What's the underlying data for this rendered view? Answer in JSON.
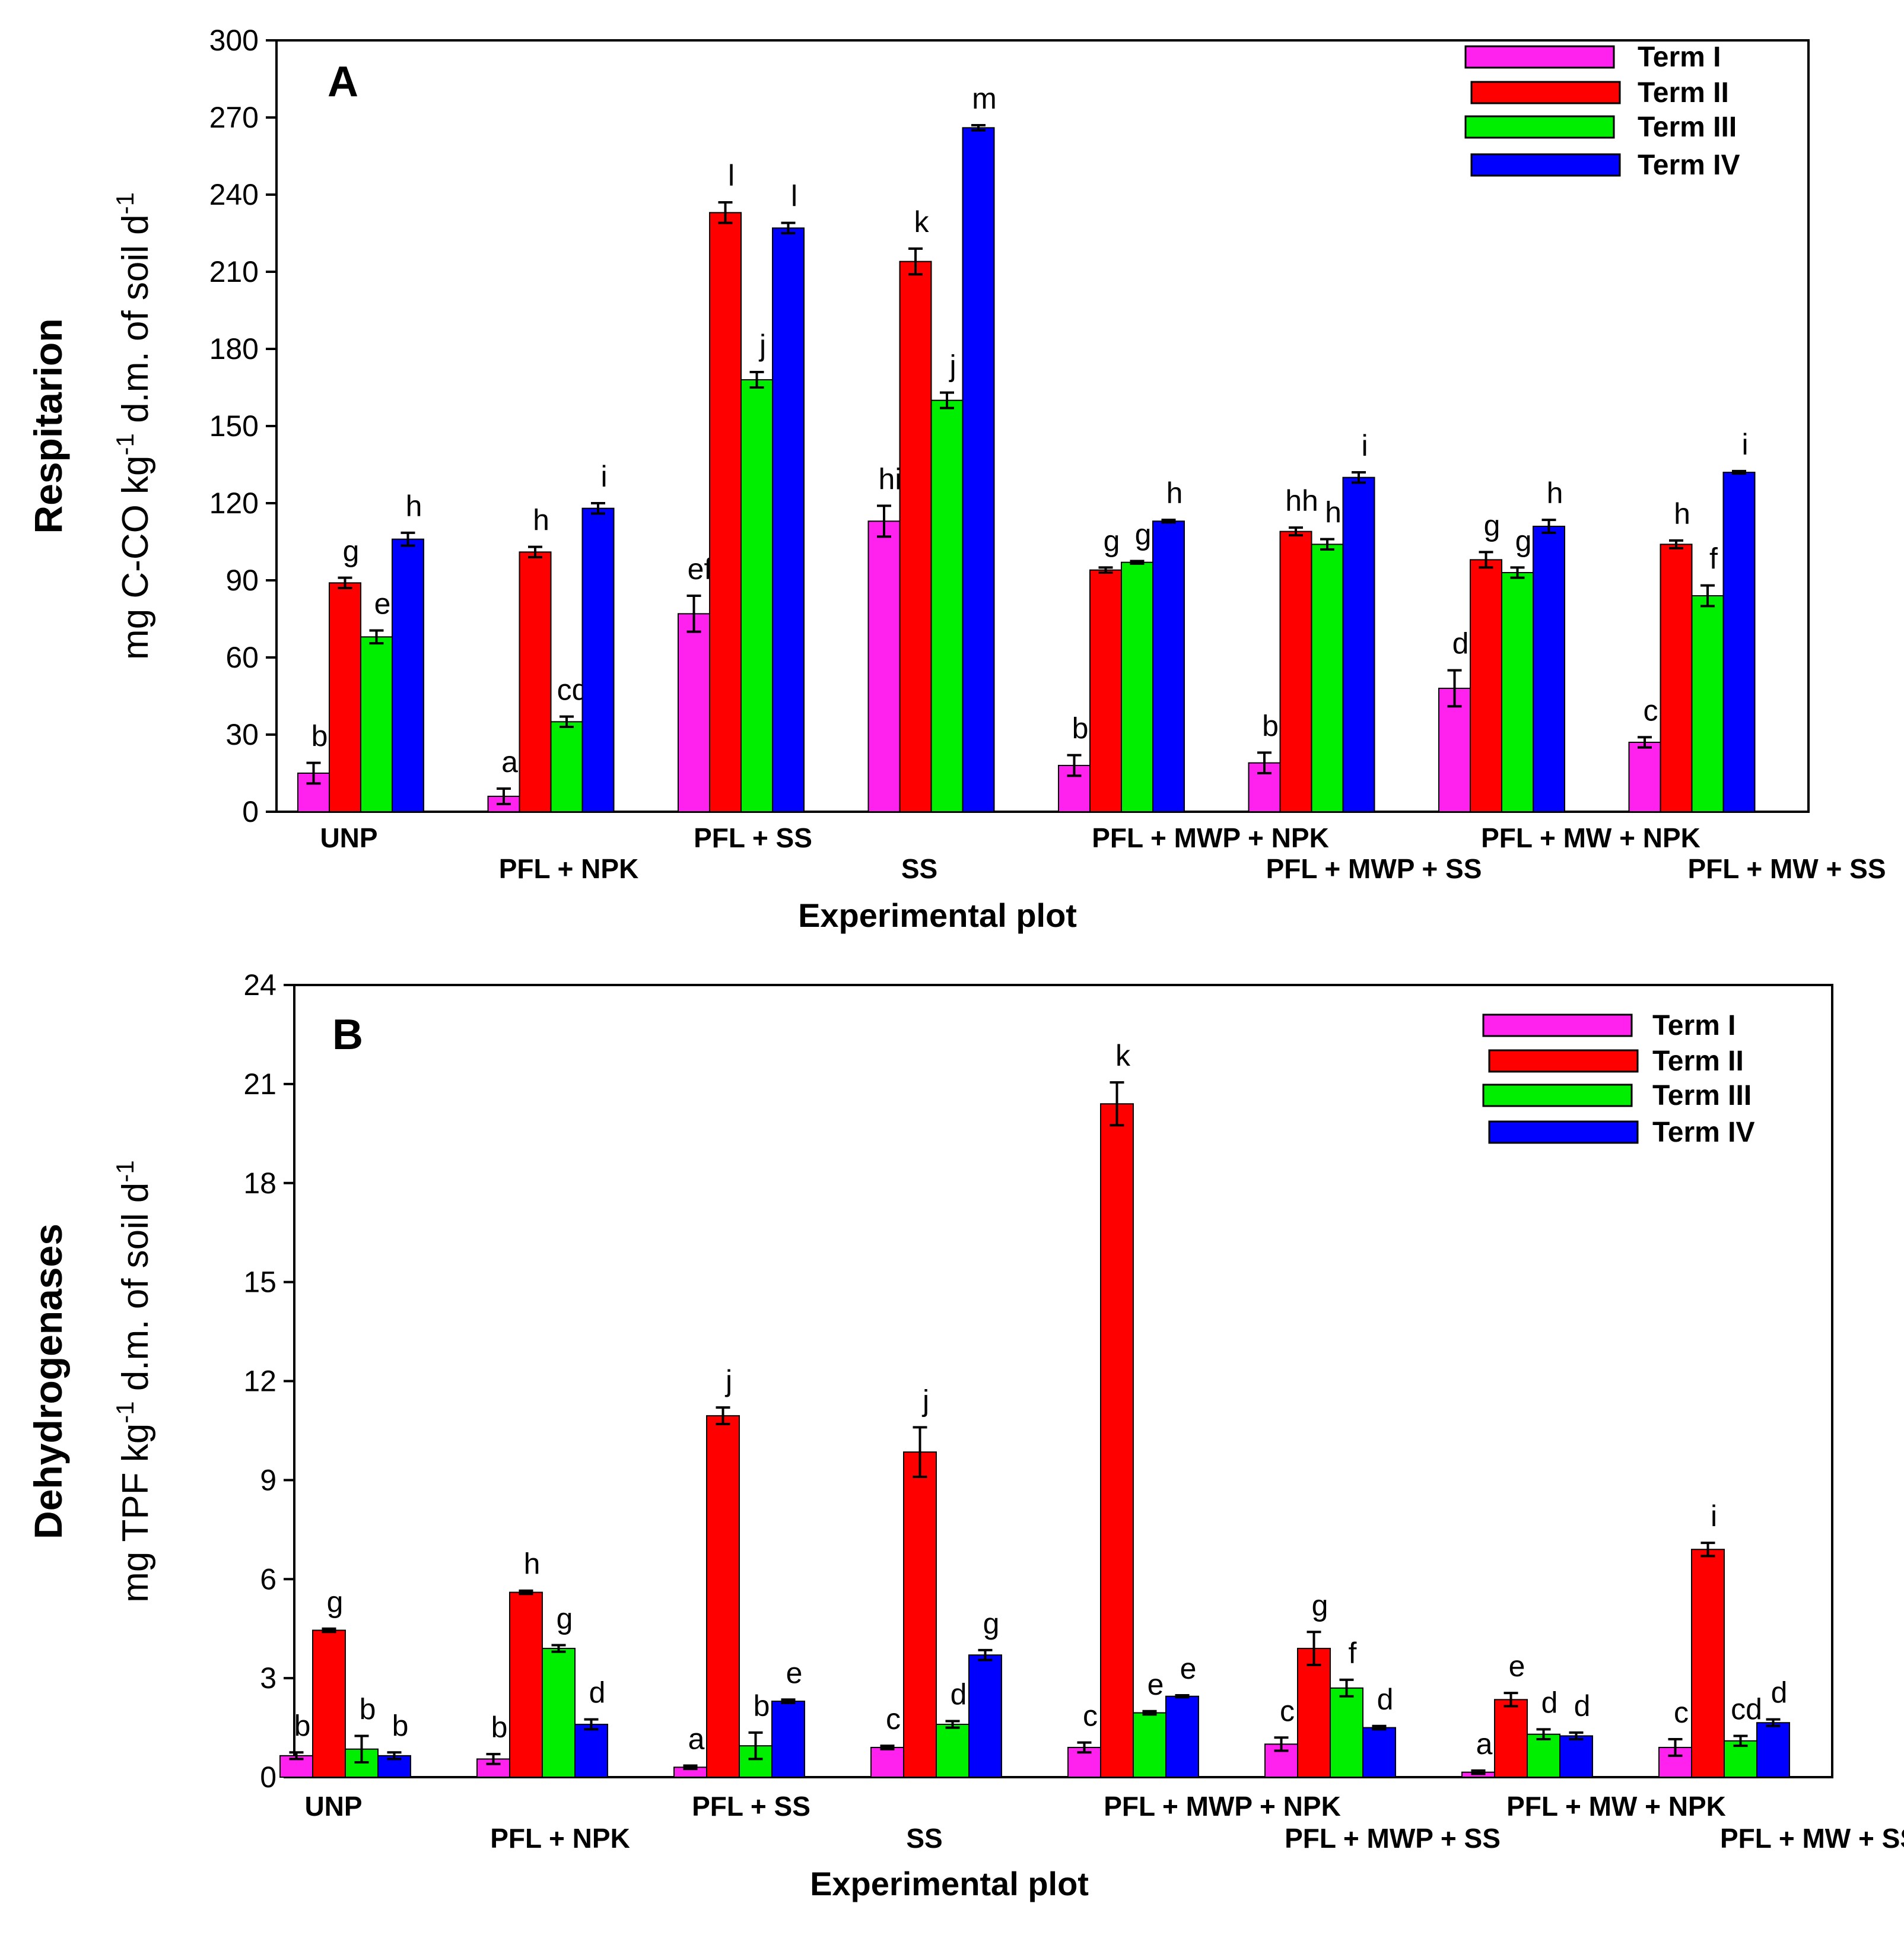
{
  "colors": {
    "Term I": "#ff22ee",
    "Term II": "#ff0000",
    "Term III": "#00ee00",
    "Term IV": "#0000ff"
  },
  "chart_data": [
    {
      "type": "bar",
      "panel": "A",
      "ylabel_main": "Respitarion",
      "ylabel_sub": "mg C-CO kg-1 d.m. of soil d-1",
      "ylabel_parts": {
        "pre": "mg C-CO kg",
        "sup1": "-1",
        "mid": " d.m. of soil d",
        "sup2": "-1"
      },
      "xlabel": "Experimental plot",
      "ylim": [
        0,
        300
      ],
      "yticks": [
        "0",
        "30",
        "60",
        "90",
        "120",
        "150",
        "180",
        "210",
        "240",
        "270",
        "300"
      ],
      "categories": [
        "UNP",
        "PFL + NPK",
        "PFL + SS",
        "SS",
        "PFL + MWP + NPK",
        "PFL + MWP + SS",
        "PFL + MW + NPK",
        "PFL + MW + SS"
      ],
      "legend": [
        "Term I",
        "Term II",
        "Term III",
        "Term IV"
      ],
      "legend_position": "top-right",
      "series": [
        {
          "name": "Term I",
          "values": [
            15,
            6,
            77,
            113,
            18,
            19,
            48,
            27
          ],
          "errors": [
            4,
            3,
            7,
            6,
            4,
            4,
            7,
            2
          ],
          "labels": [
            "b",
            "a",
            "ef",
            "hi",
            "b",
            "b",
            "d",
            "c"
          ]
        },
        {
          "name": "Term II",
          "values": [
            89,
            101,
            233,
            214,
            94,
            109,
            98,
            104
          ],
          "errors": [
            2,
            2,
            4,
            5,
            1,
            1.5,
            3,
            1.5
          ],
          "labels": [
            "g",
            "h",
            "l",
            "k",
            "g",
            "hh",
            "g",
            "h"
          ]
        },
        {
          "name": "Term III",
          "values": [
            68,
            35,
            168,
            160,
            97,
            104,
            93,
            84
          ],
          "errors": [
            2.5,
            2,
            3,
            3,
            0.5,
            2,
            2,
            4
          ],
          "labels": [
            "e",
            "cd",
            "j",
            "j",
            "g",
            "h",
            "g",
            "f"
          ]
        },
        {
          "name": "Term IV",
          "values": [
            106,
            118,
            227,
            266,
            113,
            130,
            111,
            132
          ],
          "errors": [
            2.5,
            2,
            2,
            1,
            0.5,
            2,
            2.5,
            0.5
          ],
          "labels": [
            "h",
            "i",
            "l",
            "m",
            "h",
            "i",
            "h",
            "i"
          ]
        }
      ]
    },
    {
      "type": "bar",
      "panel": "B",
      "ylabel_main": "Dehydrogenases",
      "ylabel_sub": "mg TPF kg-1 d.m. of soil d-1",
      "ylabel_parts": {
        "pre": "mg TPF kg",
        "sup1": "-1",
        "mid": " d.m. of soil d",
        "sup2": "-1"
      },
      "xlabel": "Experimental plot",
      "ylim": [
        0,
        24
      ],
      "yticks": [
        "0",
        "3",
        "6",
        "9",
        "12",
        "15",
        "18",
        "21",
        "24"
      ],
      "categories": [
        "UNP",
        "PFL + NPK",
        "PFL + SS",
        "SS",
        "PFL + MWP + NPK",
        "PFL + MWP + SS",
        "PFL + MW + NPK",
        "PFL + MW + SS"
      ],
      "legend": [
        "Term I",
        "Term II",
        "Term III",
        "Term IV"
      ],
      "legend_position": "top-right",
      "series": [
        {
          "name": "Term I",
          "values": [
            0.65,
            0.55,
            0.3,
            0.9,
            0.9,
            1.0,
            0.15,
            0.9
          ],
          "errors": [
            0.1,
            0.15,
            0.05,
            0.05,
            0.15,
            0.2,
            0.05,
            0.25
          ],
          "labels": [
            "b",
            "b",
            "a",
            "c",
            "c",
            "c",
            "a",
            "c"
          ]
        },
        {
          "name": "Term II",
          "values": [
            4.45,
            5.6,
            10.95,
            9.85,
            20.4,
            3.9,
            2.35,
            6.9
          ],
          "errors": [
            0.05,
            0.05,
            0.25,
            0.75,
            0.65,
            0.5,
            0.2,
            0.2
          ],
          "labels": [
            "g",
            "h",
            "j",
            "j",
            "k",
            "g",
            "e",
            "i"
          ]
        },
        {
          "name": "Term III",
          "values": [
            0.85,
            3.9,
            0.95,
            1.6,
            1.95,
            2.7,
            1.3,
            1.1
          ],
          "errors": [
            0.4,
            0.1,
            0.4,
            0.1,
            0.05,
            0.25,
            0.15,
            0.15
          ],
          "labels": [
            "b",
            "g",
            "b",
            "d",
            "e",
            "f",
            "d",
            "cd"
          ]
        },
        {
          "name": "Term IV",
          "values": [
            0.65,
            1.6,
            2.3,
            3.7,
            2.45,
            1.5,
            1.25,
            1.65
          ],
          "errors": [
            0.1,
            0.15,
            0.05,
            0.15,
            0.03,
            0.05,
            0.1,
            0.1
          ],
          "labels": [
            "b",
            "d",
            "e",
            "g",
            "e",
            "d",
            "d",
            "d"
          ]
        }
      ]
    }
  ]
}
